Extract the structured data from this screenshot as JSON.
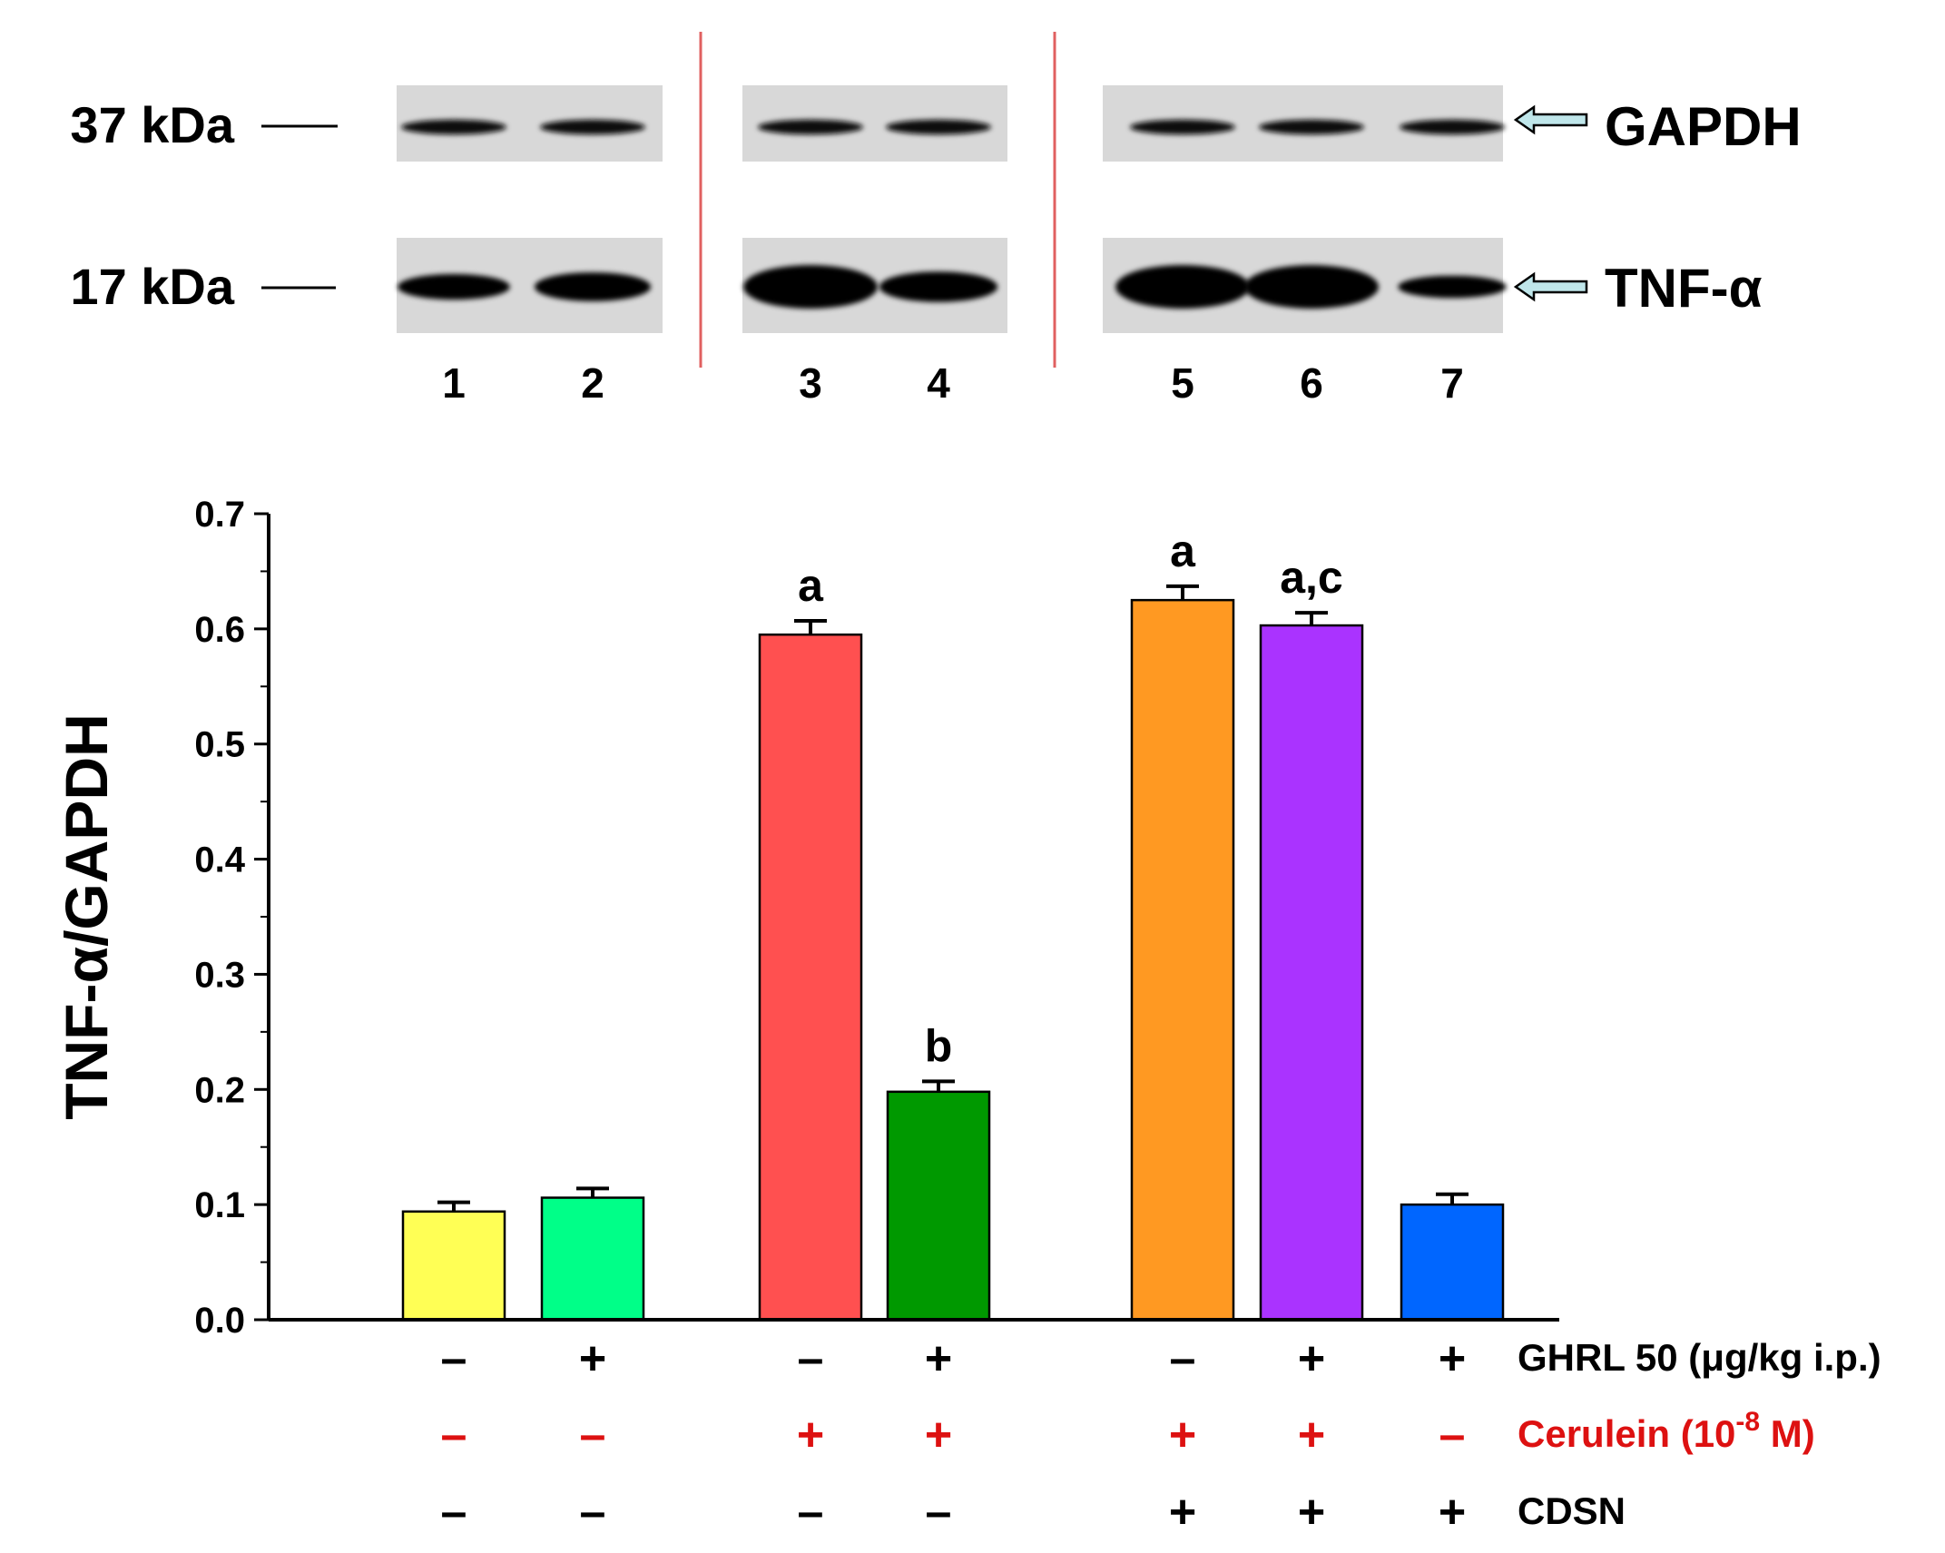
{
  "colors": {
    "background": "#ffffff",
    "axis": "#000000",
    "divider": "#e06060",
    "arrow_fill": "#bfe6ea",
    "cerulein_text": "#dd1111",
    "blot_bg": "#d8d8d8"
  },
  "blot": {
    "markers": [
      {
        "label": "37 kDa",
        "protein": "GAPDH"
      },
      {
        "label": "17 kDa",
        "protein": "TNF-α"
      }
    ],
    "lanes": [
      "1",
      "2",
      "3",
      "4",
      "5",
      "6",
      "7"
    ],
    "gapdh_band_intensity": [
      0.8,
      0.8,
      0.8,
      0.8,
      0.8,
      0.8,
      0.8
    ],
    "tnf_band_intensity": [
      0.45,
      0.55,
      1.0,
      0.6,
      1.0,
      1.0,
      0.35
    ]
  },
  "chart_data": {
    "type": "bar",
    "ylabel": "TNF-α/GAPDH",
    "ylim": [
      0,
      0.7
    ],
    "yticks": [
      "0.0",
      "0.1",
      "0.2",
      "0.3",
      "0.4",
      "0.5",
      "0.6",
      "0.7"
    ],
    "groups": [
      [
        0,
        1
      ],
      [
        2,
        3
      ],
      [
        4,
        5,
        6
      ]
    ],
    "bars": [
      {
        "lane": "1",
        "value": 0.094,
        "error": 0.008,
        "color": "#ffff55",
        "annotation": ""
      },
      {
        "lane": "2",
        "value": 0.106,
        "error": 0.008,
        "color": "#00ff88",
        "annotation": ""
      },
      {
        "lane": "3",
        "value": 0.595,
        "error": 0.012,
        "color": "#ff5050",
        "annotation": "a"
      },
      {
        "lane": "4",
        "value": 0.198,
        "error": 0.009,
        "color": "#009900",
        "annotation": "b"
      },
      {
        "lane": "5",
        "value": 0.625,
        "error": 0.012,
        "color": "#ff9922",
        "annotation": "a"
      },
      {
        "lane": "6",
        "value": 0.603,
        "error": 0.011,
        "color": "#aa33ff",
        "annotation": "a,c"
      },
      {
        "lane": "7",
        "value": 0.1,
        "error": 0.009,
        "color": "#0066ff",
        "annotation": ""
      }
    ],
    "conditions": [
      {
        "label": "GHRL 50 (μg/kg i.p.)",
        "label_sup": "",
        "label_end": "",
        "color": "#000000",
        "values": [
          "–",
          "+",
          "–",
          "+",
          "–",
          "+",
          "+"
        ]
      },
      {
        "label": "Cerulein (10",
        "label_sup": "-8",
        "label_end": " M)",
        "color": "#dd1111",
        "values": [
          "–",
          "–",
          "+",
          "+",
          "+",
          "+",
          "–"
        ]
      },
      {
        "label": "CDSN",
        "label_sup": "",
        "label_end": "",
        "color": "#000000",
        "values": [
          "–",
          "–",
          "–",
          "–",
          "+",
          "+",
          "+"
        ]
      }
    ]
  }
}
